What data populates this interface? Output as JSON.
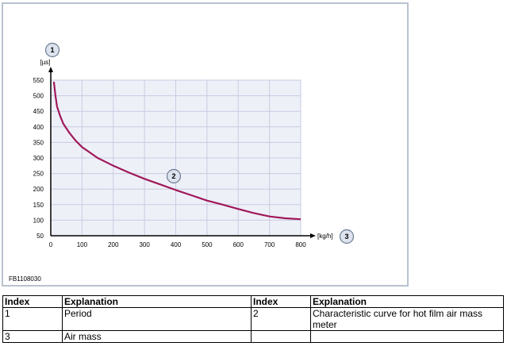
{
  "figure": {
    "id_label": "FB1108030",
    "badges": [
      "1",
      "2",
      "3"
    ]
  },
  "chart_data": {
    "type": "line",
    "xlabel": "[kg/h]",
    "ylabel": "[µs]",
    "xlim": [
      0,
      800
    ],
    "ylim": [
      50,
      550
    ],
    "x_ticks": [
      0,
      100,
      200,
      300,
      400,
      500,
      600,
      700,
      800
    ],
    "y_ticks": [
      50,
      100,
      150,
      200,
      250,
      300,
      350,
      400,
      450,
      500,
      550
    ],
    "grid": true,
    "series": [
      {
        "color": "#a0185a",
        "x": [
          10,
          15,
          20,
          30,
          40,
          60,
          80,
          100,
          150,
          200,
          250,
          300,
          350,
          400,
          450,
          500,
          550,
          600,
          650,
          700,
          750,
          800
        ],
        "y": [
          545,
          500,
          465,
          435,
          410,
          380,
          355,
          335,
          300,
          275,
          253,
          233,
          215,
          197,
          180,
          163,
          150,
          136,
          123,
          112,
          106,
          103
        ]
      }
    ]
  },
  "legend_table": {
    "headers": [
      "Index",
      "Explanation",
      "Index",
      "Explanation"
    ],
    "rows": [
      [
        "1",
        "Period",
        "2",
        "Characteristic curve for hot film air mass meter"
      ],
      [
        "3",
        "Air mass",
        "",
        ""
      ]
    ]
  }
}
